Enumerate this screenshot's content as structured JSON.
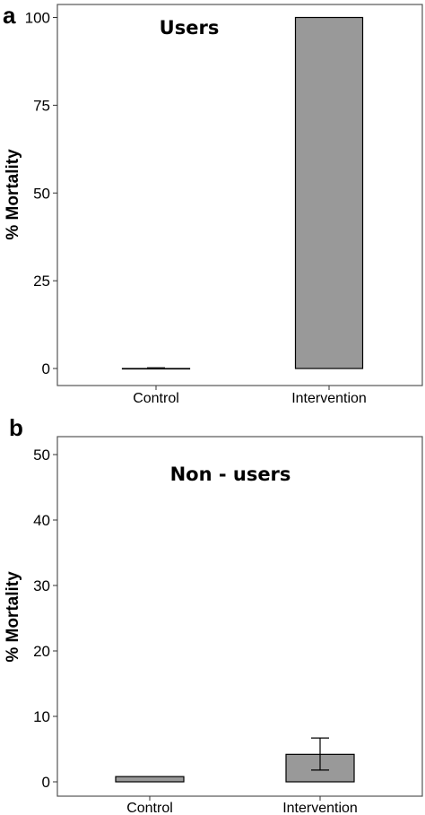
{
  "chart_data": [
    {
      "type": "bar",
      "panel": "a",
      "title": "Users",
      "ylabel": "% Mortality",
      "categories": [
        "Control",
        "Intervention"
      ],
      "values": [
        0,
        100
      ],
      "errors": [
        [
          0,
          0.2
        ],
        [
          100,
          100
        ]
      ],
      "ylim": [
        -5,
        102.5
      ],
      "yticks": [
        "0",
        "25",
        "50",
        "75",
        "100"
      ],
      "bar_color": "#999999",
      "grid": false
    },
    {
      "type": "bar",
      "panel": "b",
      "title": "Non - users",
      "ylabel": "% Mortality",
      "categories": [
        "Control",
        "Intervention"
      ],
      "values": [
        0.8,
        4.2
      ],
      "errors": [
        [
          0.8,
          0.8
        ],
        [
          1.8,
          6.7
        ]
      ],
      "ylim": [
        -2,
        52
      ],
      "yticks": [
        "0",
        "10",
        "20",
        "30",
        "40",
        "50"
      ],
      "bar_color": "#999999",
      "grid": false
    }
  ]
}
